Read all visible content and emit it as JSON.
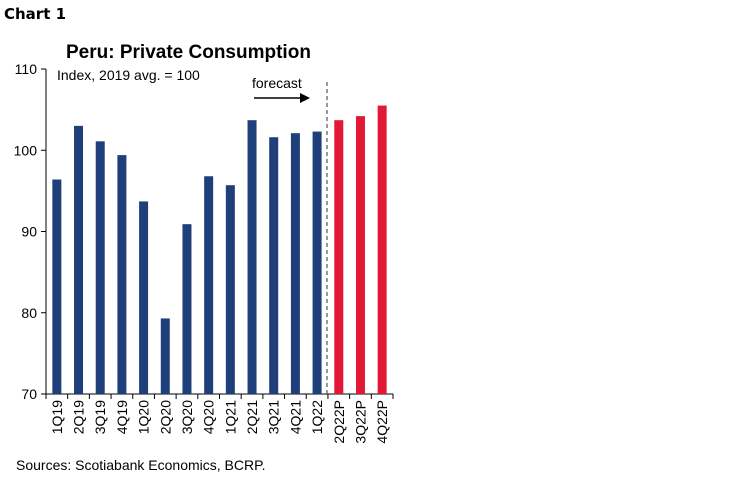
{
  "page": {
    "chart_label": "Chart 1",
    "source": "Sources: Scotiabank Economics, BCRP."
  },
  "chart_data": {
    "type": "bar",
    "title": "Peru: Private Consumption",
    "subtitle": "Index, 2019 avg. = 100",
    "xlabel": "",
    "ylabel": "",
    "ylim": [
      70,
      110
    ],
    "yticks": [
      70,
      80,
      90,
      100,
      110
    ],
    "grid": false,
    "annotation": "forecast",
    "categories": [
      "1Q19",
      "2Q19",
      "3Q19",
      "4Q19",
      "1Q20",
      "2Q20",
      "3Q20",
      "4Q20",
      "1Q21",
      "2Q21",
      "3Q21",
      "4Q21",
      "1Q22",
      "2Q22P",
      "3Q22P",
      "4Q22P"
    ],
    "values": [
      96.4,
      103.0,
      101.1,
      99.4,
      93.7,
      79.3,
      90.9,
      96.8,
      95.7,
      103.7,
      101.6,
      102.1,
      102.3,
      103.7,
      104.2,
      105.5
    ],
    "forecast_start_index": 13,
    "colors": {
      "actual": "#1f3f7a",
      "forecast": "#e31837"
    }
  }
}
